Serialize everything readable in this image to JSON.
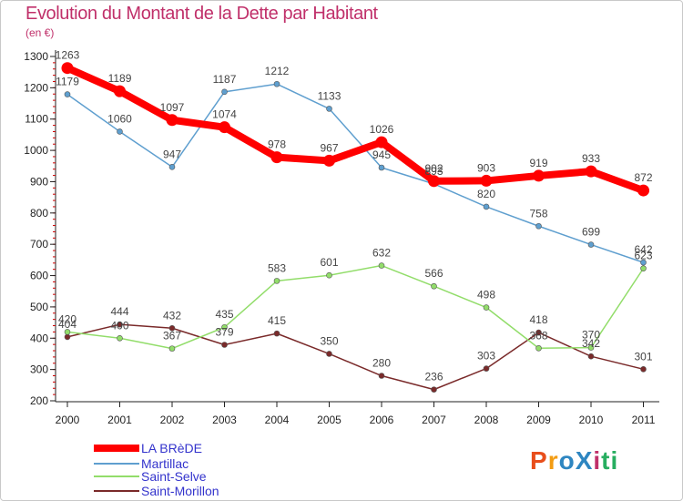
{
  "title": "Evolution du Montant de la Dette par Habitant",
  "subtitle": "(en €)",
  "logo": {
    "text": "ProXiti",
    "colors": [
      "#e84e1b",
      "#f39c12",
      "#2e86c1",
      "#2e86c1",
      "#c0306a",
      "#27ae60",
      "#27ae60"
    ]
  },
  "chart_data": {
    "type": "line",
    "title": "Evolution du Montant de la Dette par Habitant",
    "subtitle": "(en €)",
    "xlabel": "",
    "ylabel": "",
    "x": [
      "2000",
      "2001",
      "2002",
      "2003",
      "2004",
      "2005",
      "2006",
      "2007",
      "2008",
      "2009",
      "2010",
      "2011"
    ],
    "ylim": [
      200,
      1300
    ],
    "yticks": [
      200,
      300,
      400,
      500,
      600,
      700,
      800,
      900,
      1000,
      1100,
      1200,
      1300
    ],
    "grid": false,
    "legend": "bottom-left",
    "series": [
      {
        "name": "LA BRèDE",
        "color": "#ff0000",
        "values": [
          1263,
          1189,
          1097,
          1074,
          978,
          967,
          1026,
          902,
          903,
          919,
          933,
          872
        ]
      },
      {
        "name": "Martillac",
        "color": "#5f9fcf",
        "values": [
          1179,
          1060,
          947,
          1187,
          1212,
          1133,
          945,
          893,
          820,
          758,
          699,
          642
        ]
      },
      {
        "name": "Saint-Selve",
        "color": "#92dd6a",
        "values": [
          420,
          400,
          367,
          435,
          583,
          601,
          632,
          566,
          498,
          368,
          370,
          623
        ]
      },
      {
        "name": "Saint-Morillon",
        "color": "#7a2a2a",
        "values": [
          404,
          444,
          432,
          379,
          415,
          350,
          280,
          236,
          303,
          418,
          342,
          301
        ]
      }
    ]
  }
}
